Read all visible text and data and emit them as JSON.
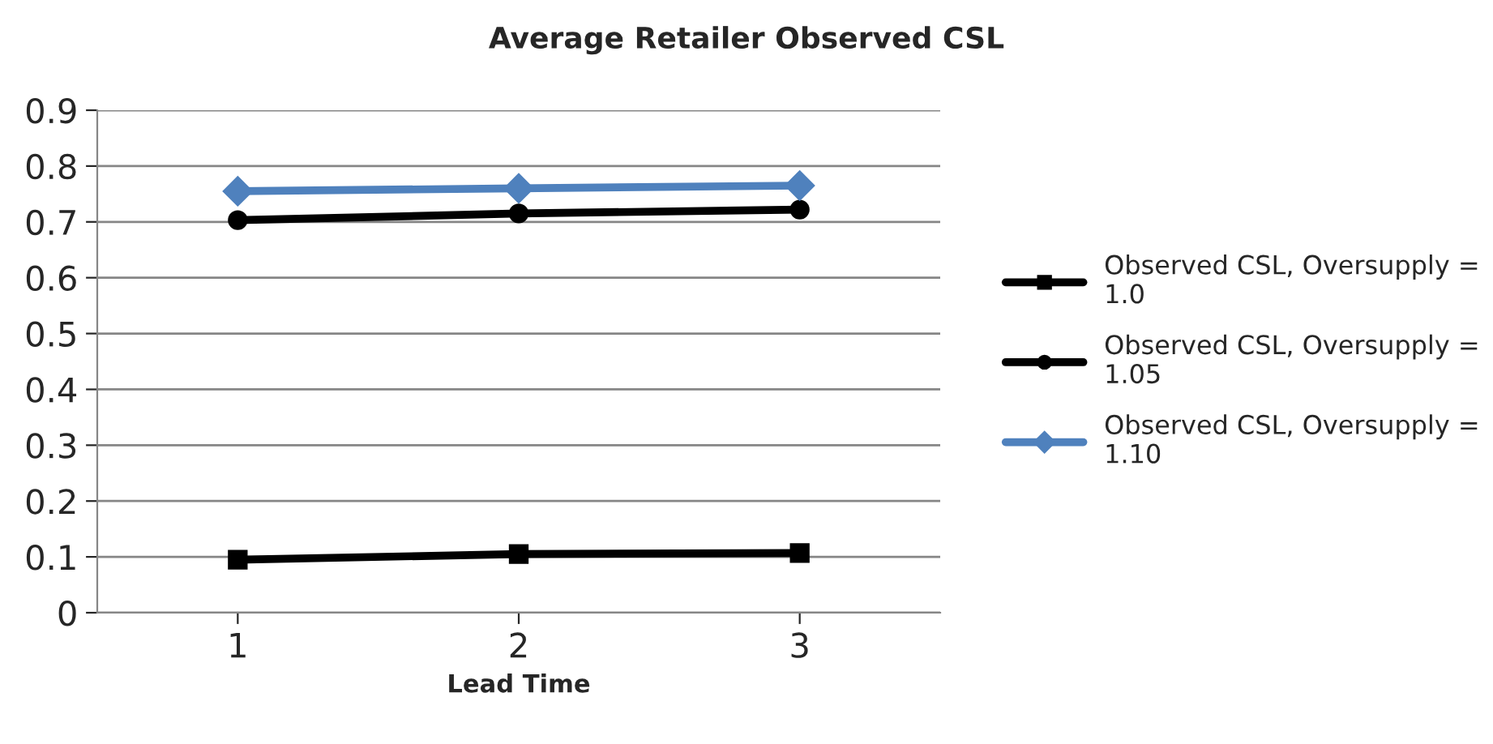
{
  "chart_data": {
    "type": "line",
    "title": "Average Retailer Observed CSL",
    "xlabel": "Lead Time",
    "categories": [
      "1",
      "2",
      "3"
    ],
    "series": [
      {
        "name": "Observed CSL, Oversupply = 1.0",
        "color": "#000000",
        "marker": "square",
        "values": [
          0.095,
          0.105,
          0.107
        ]
      },
      {
        "name": "Observed CSL, Oversupply = 1.05",
        "color": "#000000",
        "marker": "circle",
        "values": [
          0.703,
          0.715,
          0.722
        ]
      },
      {
        "name": "Observed CSL, Oversupply = 1.10",
        "color": "#4f81bd",
        "marker": "diamond",
        "values": [
          0.755,
          0.76,
          0.765
        ]
      }
    ],
    "ylim": [
      0,
      0.9
    ],
    "yticks": [
      {
        "value": 0,
        "label": "0"
      },
      0.1,
      0.2,
      0.3,
      0.4,
      0.5,
      0.6,
      0.7,
      0.8,
      0.9
    ],
    "grid": "y",
    "legend": "right",
    "line_style": "solid"
  }
}
